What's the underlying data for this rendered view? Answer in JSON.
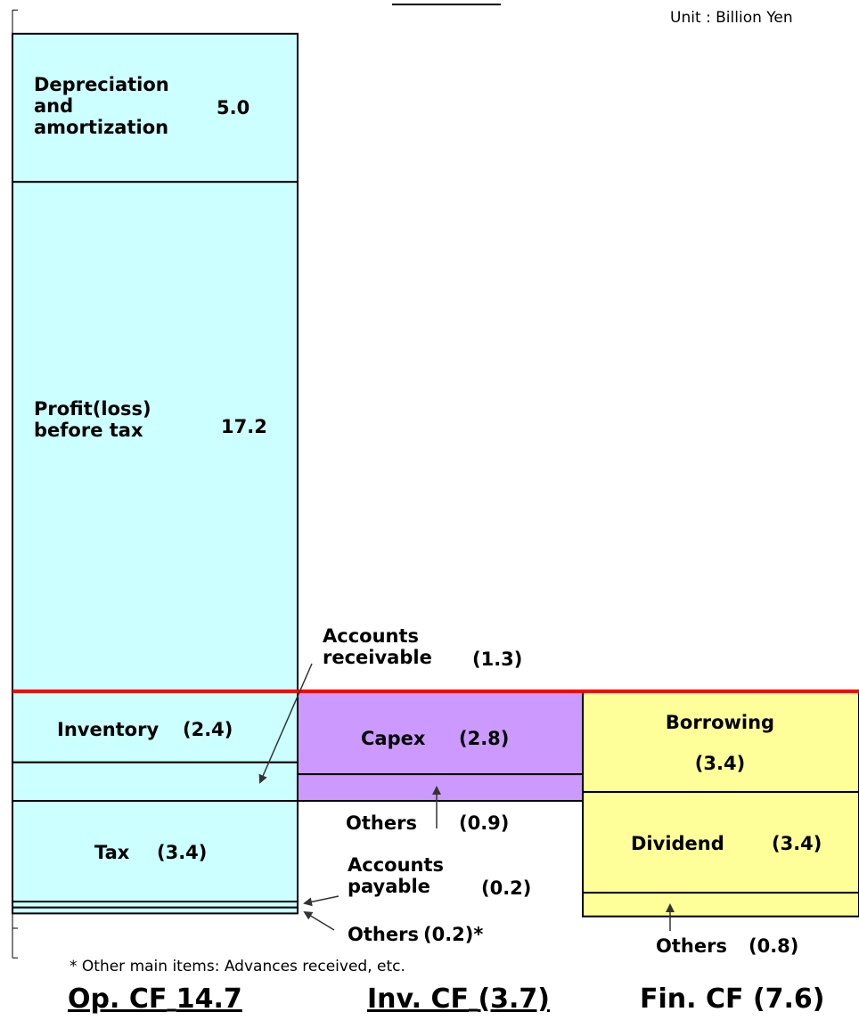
{
  "chart_data": {
    "type": "cashflow",
    "unit": "Unit : Billion Yen",
    "note": "* Other main items: Advances received,  etc.",
    "zero_line_color": "#ff0000",
    "ylim": [
      -9,
      23
    ],
    "yticks": [
      -9,
      -8,
      -7,
      -6,
      -5,
      -4,
      -3,
      -2,
      -1,
      0,
      1,
      2,
      3,
      4,
      5,
      6,
      7,
      8,
      9,
      10,
      11,
      12,
      13,
      14,
      15,
      16,
      17,
      18,
      19,
      20,
      21,
      22,
      23
    ],
    "columns": [
      {
        "name": "Op. CF",
        "total": 14.7,
        "color": "#ccffff",
        "segments": [
          {
            "name": [
              "Profit(loss)",
              "before tax"
            ],
            "value": 17.2
          },
          {
            "name": [
              "Depreciation",
              "and",
              "amortization"
            ],
            "value": 5.0,
            "value_label": "5.0"
          },
          {
            "name": [
              "Inventory"
            ],
            "value": -2.4,
            "value_label": "(2.4)"
          },
          {
            "name": [
              "Accounts",
              "receivable"
            ],
            "value": -1.3,
            "value_label": "(1.3)"
          },
          {
            "name": [
              "Tax"
            ],
            "value": -3.4,
            "value_label": "(3.4)"
          },
          {
            "name": [
              "Accounts",
              "payable"
            ],
            "value": -0.2,
            "value_label": "(0.2)"
          },
          {
            "name": [
              "Others"
            ],
            "value": -0.2,
            "value_label": "(0.2)*"
          }
        ]
      },
      {
        "name": "Inv. CF",
        "total": -3.7,
        "total_label": "(3.7)",
        "color": "#cc99ff",
        "segments": [
          {
            "name": [
              "Capex"
            ],
            "value": -2.8,
            "value_label": "(2.8)"
          },
          {
            "name": [
              "Others"
            ],
            "value": -0.9,
            "value_label": "(0.9)"
          }
        ]
      },
      {
        "name": "Fin. CF",
        "total": -7.6,
        "total_label": "(7.6)",
        "color": "#ffff99",
        "segments": [
          {
            "name": [
              "Borrowing"
            ],
            "value": -3.4,
            "value_label": "(3.4)"
          },
          {
            "name": [
              "Dividend"
            ],
            "value": -3.4,
            "value_label": "(3.4)"
          },
          {
            "name": [
              "Others"
            ],
            "value": -0.8,
            "value_label": "(0.8)"
          }
        ]
      }
    ]
  }
}
